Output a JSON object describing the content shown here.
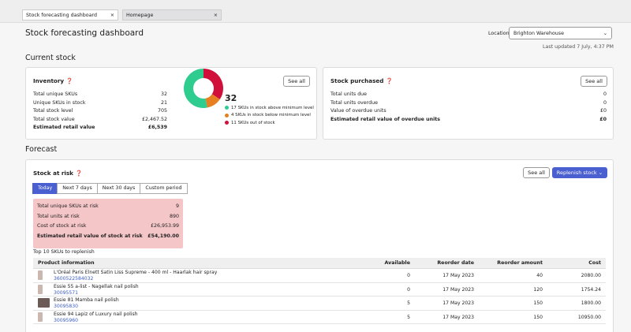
{
  "tabs": [
    "Stock forecasting dashboard",
    "Homepage"
  ],
  "header": {
    "title": "Stock forecasting dashboard",
    "location_label": "Location",
    "location_value": "Brighton Warehouse",
    "last_updated": "Last updated 7 July, 4:37 PM"
  },
  "current_stock": {
    "heading": "Current stock",
    "inventory": {
      "title": "Inventory",
      "button": "See all",
      "rows": [
        [
          "Total unique SKUs",
          "32"
        ],
        [
          "Unique SKUs in stock",
          "21"
        ],
        [
          "Total stock level",
          "705"
        ],
        [
          "Total stock value",
          "£2,467.52"
        ],
        [
          "Estimated retail value",
          "£6,539"
        ]
      ],
      "donut": {
        "total": 32,
        "segments": [
          {
            "label": "17 SKUs in stock above minimum level",
            "value": 17,
            "color": "#2ecc8f"
          },
          {
            "label": "4 SKUs in stock below minimum level",
            "value": 4,
            "color": "#e67e22"
          },
          {
            "label": "11 SKUs out of stock",
            "value": 11,
            "color": "#d0103a"
          }
        ]
      }
    },
    "purchased": {
      "title": "Stock purchased",
      "button": "See all",
      "rows": [
        [
          "Total units due",
          "0"
        ],
        [
          "Total units overdue",
          "0"
        ],
        [
          "Value of overdue units",
          "£0"
        ],
        [
          "Estimated retail value of overdue units",
          "£0"
        ]
      ]
    }
  },
  "forecast": {
    "heading": "Forecast",
    "risk": {
      "title": "Stock at risk",
      "see_all": "See all",
      "replenish": "Replenish stock",
      "periods": [
        "Today",
        "Next 7 days",
        "Next 30 days",
        "Custom period"
      ],
      "rows": [
        [
          "Total unique SKUs at risk",
          "9"
        ],
        [
          "Total units at risk",
          "890"
        ],
        [
          "Cost of stock at risk",
          "£26,953.99"
        ],
        [
          "Estimated retail value of stock at risk",
          "£54,190.00"
        ]
      ],
      "table_caption": "Top 10 SKUs to replenish",
      "table": {
        "columns": [
          "Product information",
          "Available",
          "Reorder date",
          "Reorder amount",
          "Cost"
        ],
        "rows": [
          [
            "L'Oréal Paris Elnett Satin Liss Supreme - 400 ml - Haarlak hair spray",
            "3600522584032",
            "0",
            "17 May 2023",
            "40",
            "2080.00"
          ],
          [
            "Essie 55 a-list - Nagellak nail polish",
            "30095571",
            "0",
            "17 May 2023",
            "120",
            "1754.24"
          ],
          [
            "Essie 81 Mamba nail polish",
            "30095830",
            "5",
            "17 May 2023",
            "150",
            "1800.00"
          ],
          [
            "Essie 94 Lapiz of Luxury nail polish",
            "30095960",
            "5",
            "17 May 2023",
            "150",
            "10950.00"
          ]
        ]
      }
    }
  }
}
